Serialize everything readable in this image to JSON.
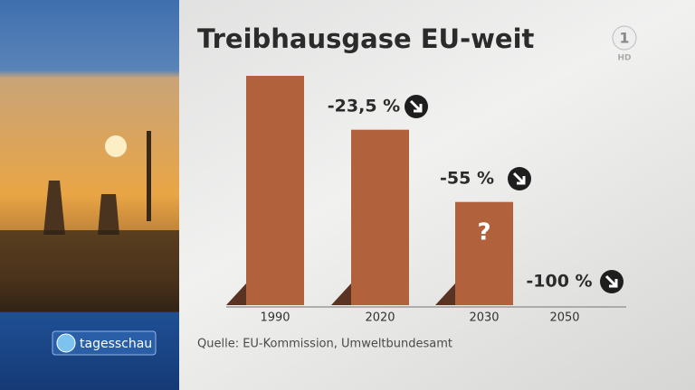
{
  "chart_data": {
    "type": "bar",
    "title": "Treibhausgase EU-weit",
    "categories": [
      "1990",
      "2020",
      "2030",
      "2050"
    ],
    "values": [
      100,
      76.5,
      45,
      0
    ],
    "color": "#b1613b",
    "ylim": [
      0,
      100
    ],
    "annotations": [
      "-23,5 %",
      "-55 %",
      "-100 %"
    ],
    "bar_note": "?",
    "source": "Quelle: EU-Kommission, Umweltbundesamt"
  },
  "branding": {
    "show": "tagesschau",
    "channel": "1",
    "quality": "HD"
  }
}
